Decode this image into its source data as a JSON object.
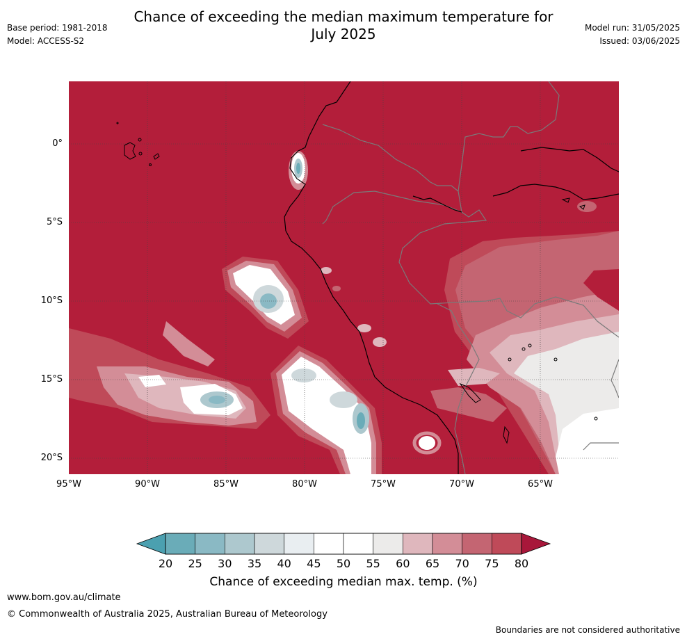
{
  "header": {
    "title_line1": "Chance of exceeding the median maximum temperature for",
    "title_line2": "July 2025",
    "base_period": "Base period: 1981-2018",
    "model": "Model: ACCESS-S2",
    "model_run": "Model run: 31/05/2025",
    "issued": "Issued: 03/06/2025"
  },
  "map": {
    "lat_labels": [
      "0°",
      "5°S",
      "10°S",
      "15°S",
      "20°S"
    ],
    "lat_values": [
      0,
      -5,
      -10,
      -15,
      -20
    ],
    "lon_labels": [
      "95°W",
      "90°W",
      "85°W",
      "80°W",
      "75°W",
      "70°W",
      "65°W"
    ],
    "lon_values": [
      -95,
      -90,
      -85,
      -80,
      -75,
      -70,
      -65
    ],
    "lon_range": [
      -95,
      -60
    ],
    "lat_range": [
      -21,
      4
    ],
    "gridlines": true,
    "background_color": "#b31e3a"
  },
  "colorbar": {
    "ticks": [
      "20",
      "25",
      "30",
      "35",
      "40",
      "45",
      "50",
      "55",
      "60",
      "65",
      "70",
      "75",
      "80"
    ],
    "colors": [
      "#6aacb8",
      "#8ab9c4",
      "#adc8ce",
      "#ced8db",
      "#e9eef1",
      "#ffffff",
      "#ffffff",
      "#ecebea",
      "#dfb7bd",
      "#d38d97",
      "#c46572",
      "#bf4a59"
    ],
    "under_color": "#4ba0b0",
    "over_color": "#a8173a",
    "label": "Chance of exceeding median max. temp. (%)"
  },
  "footer": {
    "url": "www.bom.gov.au/climate",
    "copyright": "© Commonwealth of Australia 2025, Australian Bureau of Meteorology",
    "disclaimer": "Boundaries are not considered authoritative"
  }
}
